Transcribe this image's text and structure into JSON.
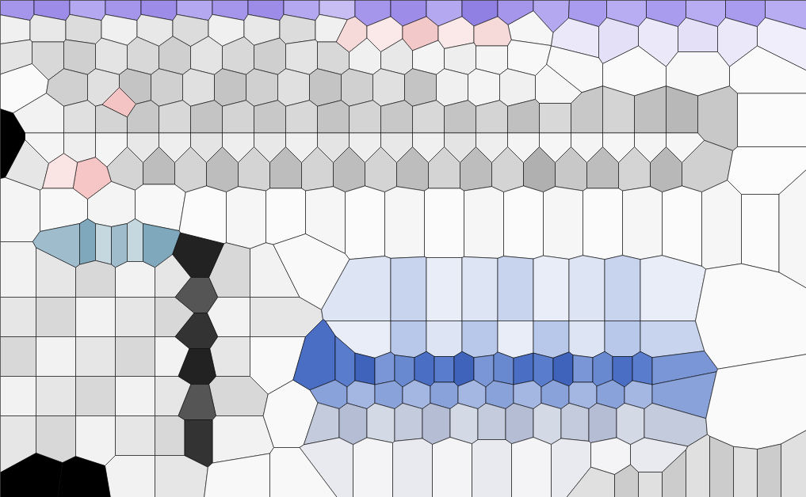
{
  "chart_data": {
    "type": "voronoi",
    "tick_labels": false,
    "xlim": [
      0,
      1017
    ],
    "ylim": [
      628,
      0
    ],
    "points": [
      [
        20,
        8,
        "#a596ec"
      ],
      [
        65,
        8,
        "#9d8ce8"
      ],
      [
        110,
        8,
        "#b4a8f0"
      ],
      [
        155,
        8,
        "#a596ec"
      ],
      [
        200,
        8,
        "#9d8ce8"
      ],
      [
        245,
        8,
        "#b4a8f0"
      ],
      [
        290,
        8,
        "#a596ec"
      ],
      [
        335,
        8,
        "#9d8ce8"
      ],
      [
        380,
        8,
        "#b4a8f0"
      ],
      [
        425,
        8,
        "#c8bef4"
      ],
      [
        470,
        8,
        "#a596ec"
      ],
      [
        515,
        8,
        "#9d8ce8"
      ],
      [
        560,
        8,
        "#b4a8f0"
      ],
      [
        605,
        8,
        "#9080e4"
      ],
      [
        650,
        8,
        "#a596ec"
      ],
      [
        695,
        8,
        "#b4a8f0"
      ],
      [
        740,
        10,
        "#a99cee"
      ],
      [
        790,
        10,
        "#b8acf2"
      ],
      [
        840,
        10,
        "#a99cee"
      ],
      [
        890,
        10,
        "#b8acf2"
      ],
      [
        940,
        10,
        "#a99cee"
      ],
      [
        990,
        10,
        "#b8acf2"
      ],
      [
        730,
        45,
        "#ebe8fa"
      ],
      [
        780,
        45,
        "#e4e0f8"
      ],
      [
        830,
        45,
        "#ebe8fa"
      ],
      [
        880,
        45,
        "#e4e0f8"
      ],
      [
        930,
        45,
        "#ebe8fa"
      ],
      [
        980,
        45,
        "#f0eefb"
      ],
      [
        15,
        35,
        "#f0f0f0"
      ],
      [
        60,
        35,
        "#e8e8e8"
      ],
      [
        105,
        35,
        "#dcdcdc"
      ],
      [
        150,
        35,
        "#f0f0f0"
      ],
      [
        195,
        35,
        "#e8e8e8"
      ],
      [
        240,
        35,
        "#dcdcdc"
      ],
      [
        285,
        35,
        "#f0f0f0"
      ],
      [
        330,
        35,
        "#e8e8e8"
      ],
      [
        375,
        35,
        "#dcdcdc"
      ],
      [
        420,
        35,
        "#f0f0f0"
      ],
      [
        665,
        35,
        "#f6f6f6"
      ],
      [
        440,
        45,
        "#f6dada"
      ],
      [
        485,
        45,
        "#fbe9e9"
      ],
      [
        530,
        45,
        "#f2c8c8"
      ],
      [
        575,
        45,
        "#fbe9e9"
      ],
      [
        620,
        45,
        "#f6dada"
      ],
      [
        20,
        70,
        "#e4e4e4"
      ],
      [
        60,
        70,
        "#d8d8d8"
      ],
      [
        100,
        70,
        "#cfcfcf"
      ],
      [
        140,
        70,
        "#e4e4e4"
      ],
      [
        180,
        70,
        "#d8d8d8"
      ],
      [
        220,
        70,
        "#cfcfcf"
      ],
      [
        260,
        70,
        "#e4e4e4"
      ],
      [
        300,
        70,
        "#d8d8d8"
      ],
      [
        340,
        70,
        "#cfcfcf"
      ],
      [
        380,
        70,
        "#e4e4e4"
      ],
      [
        420,
        70,
        "#d8d8d8"
      ],
      [
        460,
        70,
        "#f0f0f0"
      ],
      [
        500,
        70,
        "#e8e8e8"
      ],
      [
        540,
        70,
        "#f4f4f4"
      ],
      [
        580,
        70,
        "#eeeeee"
      ],
      [
        620,
        70,
        "#f4f4f4"
      ],
      [
        660,
        70,
        "#f8f8f8"
      ],
      [
        720,
        85,
        "#f8f8f8"
      ],
      [
        800,
        85,
        "#fafafa"
      ],
      [
        880,
        85,
        "#f8f8f8"
      ],
      [
        960,
        85,
        "#fafafa"
      ],
      [
        30,
        100,
        "#fafafa"
      ],
      [
        90,
        110,
        "#d0d0d0"
      ],
      [
        130,
        110,
        "#e0e0e0"
      ],
      [
        170,
        110,
        "#c4c4c4"
      ],
      [
        210,
        110,
        "#d0d0d0"
      ],
      [
        250,
        110,
        "#e0e0e0"
      ],
      [
        290,
        110,
        "#c4c4c4"
      ],
      [
        330,
        110,
        "#d0d0d0"
      ],
      [
        370,
        110,
        "#e0e0e0"
      ],
      [
        410,
        110,
        "#c4c4c4"
      ],
      [
        450,
        110,
        "#d0d0d0"
      ],
      [
        490,
        110,
        "#e0e0e0"
      ],
      [
        530,
        110,
        "#c4c4c4"
      ],
      [
        570,
        110,
        "#f0f0f0"
      ],
      [
        610,
        110,
        "#f4f4f4"
      ],
      [
        650,
        110,
        "#f0f0f0"
      ],
      [
        700,
        110,
        "#f6f6f6"
      ],
      [
        150,
        130,
        "#f4c4c4"
      ],
      [
        60,
        150,
        "#f2f2f2"
      ],
      [
        100,
        150,
        "#e0e0e0"
      ],
      [
        140,
        150,
        "#d4d4d4"
      ],
      [
        180,
        150,
        "#c8c8c8"
      ],
      [
        220,
        150,
        "#d8d8d8"
      ],
      [
        260,
        150,
        "#c4c4c4"
      ],
      [
        300,
        150,
        "#d4d4d4"
      ],
      [
        340,
        150,
        "#c8c8c8"
      ],
      [
        380,
        150,
        "#d8d8d8"
      ],
      [
        420,
        150,
        "#c4c4c4"
      ],
      [
        460,
        150,
        "#d4d4d4"
      ],
      [
        500,
        150,
        "#c8c8c8"
      ],
      [
        540,
        150,
        "#d8d8d8"
      ],
      [
        580,
        150,
        "#c4c4c4"
      ],
      [
        620,
        150,
        "#d4d4d4"
      ],
      [
        660,
        150,
        "#c0c0c0"
      ],
      [
        700,
        150,
        "#d8d8d8"
      ],
      [
        740,
        150,
        "#c8c8c8"
      ],
      [
        780,
        150,
        "#d4d4d4"
      ],
      [
        820,
        150,
        "#c0c0c0"
      ],
      [
        860,
        150,
        "#b8b8b8"
      ],
      [
        900,
        150,
        "#c8c8c8"
      ],
      [
        60,
        185,
        "#f4f4f4"
      ],
      [
        100,
        185,
        "#eeeeee"
      ],
      [
        140,
        185,
        "#f4f4f4"
      ],
      [
        180,
        185,
        "#e8e8e8"
      ],
      [
        220,
        185,
        "#eeeeee"
      ],
      [
        260,
        185,
        "#e4e4e4"
      ],
      [
        300,
        185,
        "#eeeeee"
      ],
      [
        340,
        185,
        "#e8e8e8"
      ],
      [
        380,
        185,
        "#f0f0f0"
      ],
      [
        420,
        185,
        "#e4e4e4"
      ],
      [
        460,
        185,
        "#eeeeee"
      ],
      [
        500,
        185,
        "#e8e8e8"
      ],
      [
        540,
        185,
        "#f0f0f0"
      ],
      [
        580,
        185,
        "#e4e4e4"
      ],
      [
        620,
        185,
        "#eeeeee"
      ],
      [
        660,
        185,
        "#f4f4f4"
      ],
      [
        700,
        185,
        "#f6f6f6"
      ],
      [
        740,
        185,
        "#f4f4f4"
      ],
      [
        780,
        185,
        "#f6f6f6"
      ],
      [
        820,
        185,
        "#f4f4f4"
      ],
      [
        860,
        185,
        "#f6f6f6"
      ],
      [
        40,
        205,
        "#e6e6e6"
      ],
      [
        160,
        205,
        "#d4d4d4"
      ],
      [
        200,
        205,
        "#bdbdbd"
      ],
      [
        240,
        205,
        "#d4d4d4"
      ],
      [
        280,
        205,
        "#bdbdbd"
      ],
      [
        320,
        205,
        "#d4d4d4"
      ],
      [
        360,
        205,
        "#bdbdbd"
      ],
      [
        400,
        205,
        "#d4d4d4"
      ],
      [
        440,
        205,
        "#bdbdbd"
      ],
      [
        480,
        205,
        "#d4d4d4"
      ],
      [
        520,
        205,
        "#bdbdbd"
      ],
      [
        560,
        205,
        "#d4d4d4"
      ],
      [
        600,
        205,
        "#bdbdbd"
      ],
      [
        640,
        205,
        "#d4d4d4"
      ],
      [
        680,
        205,
        "#b0b0b0"
      ],
      [
        720,
        205,
        "#c8c8c8"
      ],
      [
        760,
        205,
        "#bdbdbd"
      ],
      [
        800,
        205,
        "#d4d4d4"
      ],
      [
        840,
        205,
        "#b8b8b8"
      ],
      [
        880,
        205,
        "#d0d0d0"
      ],
      [
        110,
        220,
        "#f6c6c6"
      ],
      [
        80,
        215,
        "#fbe4e4"
      ],
      [
        960,
        150,
        "#fbfbfb"
      ],
      [
        960,
        220,
        "#fcfcfc"
      ],
      [
        2,
        185,
        "#000000"
      ],
      [
        20,
        260,
        "#f4f4f4"
      ],
      [
        80,
        260,
        "#f8f8f8"
      ],
      [
        140,
        260,
        "#f4f4f4"
      ],
      [
        200,
        260,
        "#f8f8f8"
      ],
      [
        260,
        270,
        "#fbfbfb"
      ],
      [
        310,
        270,
        "#f6f6f6"
      ],
      [
        360,
        270,
        "#fbfbfb"
      ],
      [
        410,
        270,
        "#f6f6f6"
      ],
      [
        460,
        270,
        "#fbfbfb"
      ],
      [
        510,
        270,
        "#f6f6f6"
      ],
      [
        560,
        270,
        "#fbfbfb"
      ],
      [
        610,
        270,
        "#f6f6f6"
      ],
      [
        660,
        270,
        "#fbfbfb"
      ],
      [
        710,
        270,
        "#f6f6f6"
      ],
      [
        760,
        270,
        "#fbfbfb"
      ],
      [
        810,
        270,
        "#f6f6f6"
      ],
      [
        860,
        270,
        "#fbfbfb"
      ],
      [
        910,
        270,
        "#f6f6f6"
      ],
      [
        960,
        270,
        "#fbfbfb"
      ],
      [
        1005,
        270,
        "#f6f6f6"
      ],
      [
        90,
        310,
        "#9fbccc"
      ],
      [
        110,
        310,
        "#7fa8bc"
      ],
      [
        130,
        310,
        "#c5d8e0"
      ],
      [
        150,
        310,
        "#9fbccc"
      ],
      [
        170,
        310,
        "#c5d8e0"
      ],
      [
        190,
        310,
        "#7fa8bc"
      ],
      [
        20,
        350,
        "#f2f2f2"
      ],
      [
        70,
        350,
        "#e6e6e6"
      ],
      [
        120,
        350,
        "#d8d8d8"
      ],
      [
        170,
        350,
        "#f2f2f2"
      ],
      [
        220,
        350,
        "#e6e6e6"
      ],
      [
        290,
        350,
        "#d8d8d8"
      ],
      [
        340,
        350,
        "#f2f2f2"
      ],
      [
        20,
        400,
        "#e6e6e6"
      ],
      [
        70,
        400,
        "#d8d8d8"
      ],
      [
        120,
        400,
        "#f2f2f2"
      ],
      [
        170,
        400,
        "#e6e6e6"
      ],
      [
        220,
        400,
        "#d8d8d8"
      ],
      [
        290,
        400,
        "#f2f2f2"
      ],
      [
        340,
        400,
        "#e6e6e6"
      ],
      [
        20,
        450,
        "#d8d8d8"
      ],
      [
        70,
        450,
        "#f2f2f2"
      ],
      [
        120,
        450,
        "#e6e6e6"
      ],
      [
        170,
        450,
        "#d8d8d8"
      ],
      [
        220,
        450,
        "#f2f2f2"
      ],
      [
        290,
        450,
        "#e6e6e6"
      ],
      [
        20,
        500,
        "#f2f2f2"
      ],
      [
        70,
        500,
        "#e6e6e6"
      ],
      [
        120,
        500,
        "#d8d8d8"
      ],
      [
        170,
        500,
        "#f2f2f2"
      ],
      [
        220,
        500,
        "#e6e6e6"
      ],
      [
        290,
        500,
        "#d8d8d8"
      ],
      [
        20,
        550,
        "#e6e6e6"
      ],
      [
        70,
        550,
        "#d8d8d8"
      ],
      [
        120,
        550,
        "#f2f2f2"
      ],
      [
        170,
        550,
        "#e6e6e6"
      ],
      [
        220,
        550,
        "#d8d8d8"
      ],
      [
        290,
        550,
        "#f2f2f2"
      ],
      [
        170,
        600,
        "#f2f2f2"
      ],
      [
        220,
        600,
        "#e6e6e6"
      ],
      [
        245,
        330,
        "#222222"
      ],
      [
        245,
        370,
        "#555555"
      ],
      [
        245,
        420,
        "#333333"
      ],
      [
        245,
        460,
        "#222222"
      ],
      [
        245,
        510,
        "#555555"
      ],
      [
        245,
        550,
        "#333333"
      ],
      [
        380,
        330,
        "#f9f9f9"
      ],
      [
        340,
        450,
        "#f9f9f9"
      ],
      [
        380,
        520,
        "#f9f9f9"
      ],
      [
        470,
        380,
        "#dde4f4"
      ],
      [
        515,
        380,
        "#c8d4ee"
      ],
      [
        560,
        380,
        "#e8edf8"
      ],
      [
        605,
        380,
        "#dde4f4"
      ],
      [
        650,
        380,
        "#c8d4ee"
      ],
      [
        695,
        380,
        "#e8edf8"
      ],
      [
        740,
        380,
        "#dde4f4"
      ],
      [
        785,
        380,
        "#c8d4ee"
      ],
      [
        830,
        380,
        "#e8edf8"
      ],
      [
        470,
        430,
        "#e8edf8"
      ],
      [
        515,
        430,
        "#b8c8ea"
      ],
      [
        560,
        430,
        "#dde4f4"
      ],
      [
        605,
        430,
        "#b8c8ea"
      ],
      [
        650,
        430,
        "#e8edf8"
      ],
      [
        695,
        430,
        "#b8c8ea"
      ],
      [
        740,
        430,
        "#dde4f4"
      ],
      [
        785,
        430,
        "#b8c8ea"
      ],
      [
        830,
        430,
        "#c8d4ee"
      ],
      [
        410,
        470,
        "#4a6ec4"
      ],
      [
        435,
        470,
        "#5a7ccc"
      ],
      [
        460,
        470,
        "#3f63bb"
      ],
      [
        485,
        470,
        "#7a96d6"
      ],
      [
        510,
        470,
        "#6888d0"
      ],
      [
        535,
        470,
        "#4a6ec4"
      ],
      [
        560,
        470,
        "#5a7ccc"
      ],
      [
        585,
        470,
        "#3f63bb"
      ],
      [
        610,
        470,
        "#7a96d6"
      ],
      [
        635,
        470,
        "#6888d0"
      ],
      [
        660,
        470,
        "#4a6ec4"
      ],
      [
        685,
        470,
        "#5a7ccc"
      ],
      [
        710,
        470,
        "#3f63bb"
      ],
      [
        735,
        470,
        "#7a96d6"
      ],
      [
        760,
        470,
        "#6888d0"
      ],
      [
        785,
        470,
        "#4a6ec4"
      ],
      [
        810,
        470,
        "#5a7ccc"
      ],
      [
        835,
        470,
        "#7a96d6"
      ],
      [
        420,
        495,
        "#8aa2da"
      ],
      [
        455,
        495,
        "#a4b6e2"
      ],
      [
        490,
        495,
        "#8aa2da"
      ],
      [
        525,
        495,
        "#a4b6e2"
      ],
      [
        560,
        495,
        "#8aa2da"
      ],
      [
        595,
        495,
        "#a4b6e2"
      ],
      [
        630,
        495,
        "#8aa2da"
      ],
      [
        665,
        495,
        "#a4b6e2"
      ],
      [
        700,
        495,
        "#8aa2da"
      ],
      [
        735,
        495,
        "#a4b6e2"
      ],
      [
        770,
        495,
        "#8aa2da"
      ],
      [
        805,
        495,
        "#a4b6e2"
      ],
      [
        840,
        495,
        "#8aa2da"
      ],
      [
        410,
        530,
        "#c4cbdc"
      ],
      [
        445,
        530,
        "#b4bdd4"
      ],
      [
        480,
        530,
        "#d4d9e6"
      ],
      [
        515,
        530,
        "#c4cbdc"
      ],
      [
        550,
        530,
        "#b4bdd4"
      ],
      [
        585,
        530,
        "#d4d9e6"
      ],
      [
        620,
        530,
        "#c4cbdc"
      ],
      [
        655,
        530,
        "#b4bdd4"
      ],
      [
        690,
        530,
        "#d4d9e6"
      ],
      [
        725,
        530,
        "#c4cbdc"
      ],
      [
        760,
        530,
        "#b4bdd4"
      ],
      [
        795,
        530,
        "#d4d9e6"
      ],
      [
        830,
        530,
        "#c4cbdc"
      ],
      [
        420,
        580,
        "#e8eaf0"
      ],
      [
        470,
        580,
        "#f4f4f6"
      ],
      [
        520,
        580,
        "#e8eaf0"
      ],
      [
        570,
        580,
        "#f4f4f6"
      ],
      [
        620,
        580,
        "#e8eaf0"
      ],
      [
        670,
        580,
        "#f4f4f6"
      ],
      [
        720,
        580,
        "#e8eaf0"
      ],
      [
        770,
        580,
        "#f4f4f6"
      ],
      [
        820,
        580,
        "#e8eaf0"
      ],
      [
        930,
        400,
        "#fafafa"
      ],
      [
        950,
        520,
        "#fafafa"
      ],
      [
        760,
        612,
        "#e0e0e0"
      ],
      [
        790,
        612,
        "#cccccc"
      ],
      [
        820,
        612,
        "#e0e0e0"
      ],
      [
        850,
        612,
        "#cccccc"
      ],
      [
        880,
        612,
        "#e0e0e0"
      ],
      [
        910,
        612,
        "#cccccc"
      ],
      [
        940,
        612,
        "#e0e0e0"
      ],
      [
        970,
        612,
        "#cccccc"
      ],
      [
        1000,
        612,
        "#e0e0e0"
      ],
      [
        50,
        605,
        "#000000"
      ],
      [
        100,
        612,
        "#000000"
      ],
      [
        300,
        610,
        "#f8f8f8"
      ],
      [
        380,
        610,
        "#f8f8f8"
      ]
    ]
  }
}
